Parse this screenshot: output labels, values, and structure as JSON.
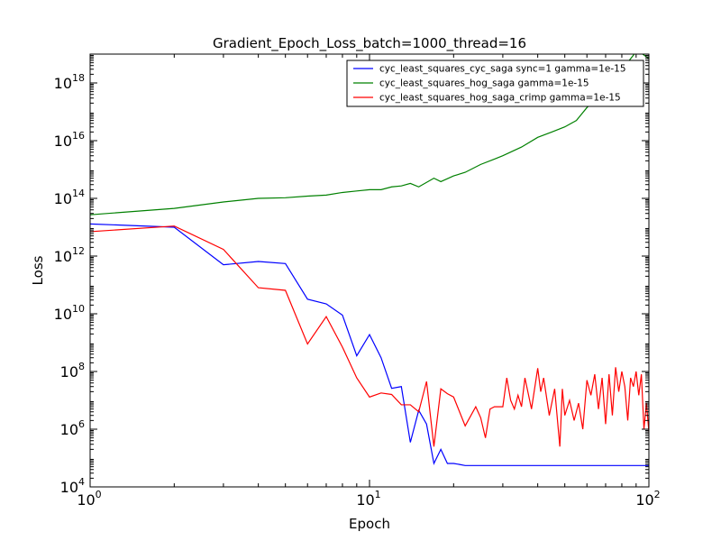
{
  "chart_data": {
    "type": "line",
    "title": "Gradient_Epoch_Loss_batch=1000_thread=16",
    "xlabel": "Epoch",
    "ylabel": "Loss",
    "xscale": "log",
    "yscale": "log",
    "xlim": [
      1,
      100
    ],
    "ylim": [
      10000,
      1e+19
    ],
    "x_ticks": [
      {
        "base": "10",
        "exp": "0",
        "value": 1
      },
      {
        "base": "10",
        "exp": "1",
        "value": 10
      },
      {
        "base": "10",
        "exp": "2",
        "value": 100
      }
    ],
    "y_ticks": [
      {
        "base": "10",
        "exp": "4",
        "value": 10000.0
      },
      {
        "base": "10",
        "exp": "6",
        "value": 1000000.0
      },
      {
        "base": "10",
        "exp": "8",
        "value": 100000000.0
      },
      {
        "base": "10",
        "exp": "10",
        "value": 10000000000.0
      },
      {
        "base": "10",
        "exp": "12",
        "value": 1000000000000.0
      },
      {
        "base": "10",
        "exp": "14",
        "value": 100000000000000.0
      },
      {
        "base": "10",
        "exp": "16",
        "value": 1e+16
      },
      {
        "base": "10",
        "exp": "18",
        "value": 1e+18
      }
    ],
    "grid": false,
    "legend_position": "top-right",
    "series": [
      {
        "name": "cyc_least_squares_cyc_saga sync=1 gamma=1e-15",
        "color": "#0000ff",
        "x": [
          1,
          2,
          3,
          4,
          5,
          6,
          7,
          8,
          9,
          10,
          11,
          12,
          13,
          14,
          15,
          16,
          17,
          18,
          19,
          20,
          21,
          22,
          25,
          30,
          40,
          60,
          80,
          100
        ],
        "y": [
          13000000000000.0,
          10000000000000.0,
          500000000000.0,
          650000000000.0,
          550000000000.0,
          32000000000.0,
          22000000000.0,
          9000000000.0,
          350000000.0,
          1900000000.0,
          300000000.0,
          26000000.0,
          30000000.0,
          350000.0,
          4500000.0,
          1500000.0,
          65000.0,
          200000.0,
          65000.0,
          65000.0,
          60000.0,
          55000.0,
          55000.0,
          55000.0,
          55000.0,
          55000.0,
          55000.0,
          55000.0
        ]
      },
      {
        "name": "cyc_least_squares_hog_saga gamma=1e-15",
        "color": "#008000",
        "x": [
          1,
          2,
          3,
          4,
          5,
          6,
          7,
          8,
          9,
          10,
          11,
          12,
          13,
          14,
          15,
          17,
          18,
          20,
          22,
          25,
          28,
          30,
          35,
          40,
          45,
          50,
          55,
          60,
          65,
          70,
          75,
          80,
          85,
          90,
          93,
          95,
          100
        ],
        "y": [
          27000000000000.0,
          45000000000000.0,
          75000000000000.0,
          100000000000000.0,
          105000000000000.0,
          120000000000000.0,
          130000000000000.0,
          160000000000000.0,
          180000000000000.0,
          200000000000000.0,
          200000000000000.0,
          250000000000000.0,
          270000000000000.0,
          330000000000000.0,
          250000000000000.0,
          500000000000000.0,
          380000000000000.0,
          600000000000000.0,
          800000000000000.0,
          1500000000000000.0,
          2300000000000000.0,
          3000000000000000.0,
          6000000000000000.0,
          1.3e+16,
          2e+16,
          3e+16,
          5e+16,
          1.4e+17,
          3e+17,
          7e+17,
          1.2e+18,
          2.5e+18,
          6e+18,
          1.2e+19,
          2.5e+19,
          1e+19,
          7e+18
        ]
      },
      {
        "name": "cyc_least_squares_hog_saga_crimp gamma=1e-15",
        "color": "#ff0000",
        "x": [
          1,
          2,
          3,
          4,
          5,
          6,
          7,
          8,
          9,
          10,
          11,
          12,
          13,
          14,
          15,
          16,
          17,
          18,
          19,
          20,
          22,
          24,
          25,
          26,
          27,
          28,
          30,
          31,
          32,
          33,
          34,
          35,
          36,
          38,
          40,
          41,
          42,
          44,
          46,
          48,
          49,
          50,
          52,
          54,
          56,
          58,
          60,
          62,
          64,
          66,
          68,
          70,
          72,
          74,
          76,
          78,
          80,
          82,
          84,
          86,
          88,
          90,
          92,
          94,
          96,
          98,
          100
        ],
        "y": [
          7000000000000.0,
          11000000000000.0,
          1700000000000.0,
          80000000000.0,
          65000000000.0,
          900000000.0,
          8000000000.0,
          700000000.0,
          60000000.0,
          13000000.0,
          18000000.0,
          16000000.0,
          7000000.0,
          7000000.0,
          4000000.0,
          45000000.0,
          250000.0,
          25000000.0,
          17000000.0,
          13000000.0,
          1300000.0,
          6000000.0,
          2500000.0,
          500000.0,
          5000000.0,
          6000000.0,
          6000000.0,
          60000000.0,
          10000000.0,
          5000000.0,
          15000000.0,
          6000000.0,
          60000000.0,
          5000000.0,
          130000000.0,
          20000000.0,
          60000000.0,
          3000000.0,
          25000000.0,
          250000.0,
          25000000.0,
          3000000.0,
          10000000.0,
          2000000.0,
          8000000.0,
          1000000.0,
          50000000.0,
          15000000.0,
          80000000.0,
          5000000.0,
          60000000.0,
          1500000.0,
          80000000.0,
          3000000.0,
          140000000.0,
          20000000.0,
          100000000.0,
          30000000.0,
          2000000.0,
          60000000.0,
          30000000.0,
          100000000.0,
          15000000.0,
          80000000.0,
          1000000.0,
          8000000.0,
          800000.0
        ]
      }
    ]
  }
}
